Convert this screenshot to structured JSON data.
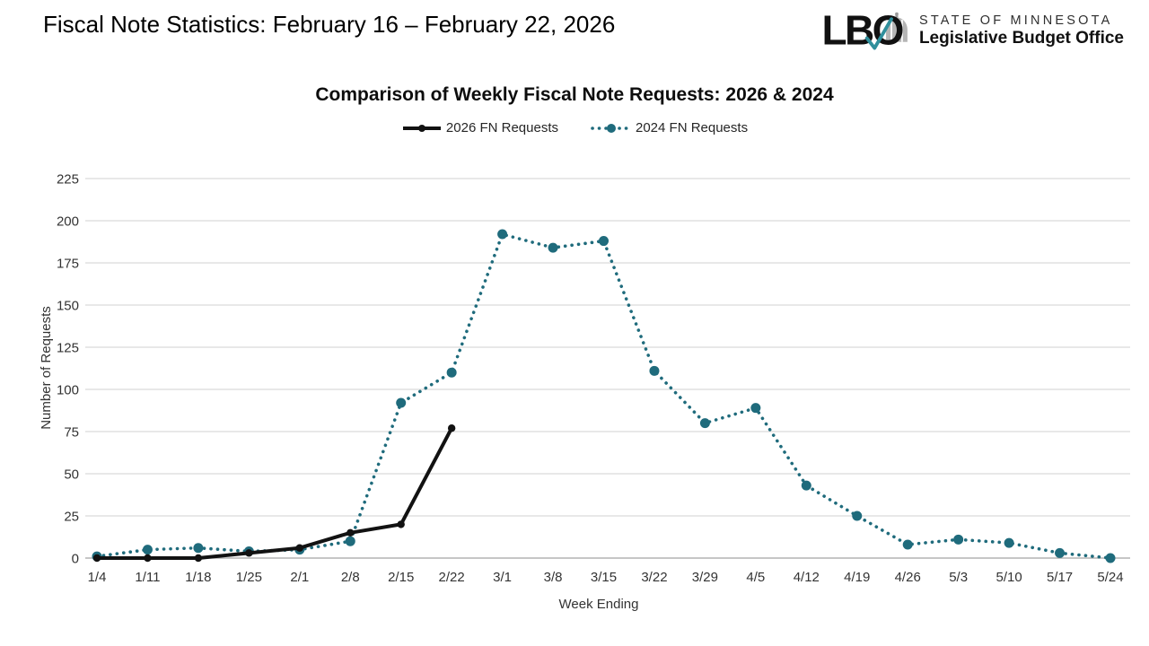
{
  "header": {
    "title": "Fiscal Note Statistics: February 16 – February 22, 2026",
    "logo": {
      "acronym": "LBO",
      "state_line": "STATE OF MINNESOTA",
      "office_line": "Legislative Budget Office",
      "check_color": "#2f8f9c",
      "dome_color": "#b5b5b5",
      "text_color": "#111111"
    }
  },
  "chart_data": {
    "type": "line",
    "title": "Comparison of Weekly Fiscal Note Requests: 2026 & 2024",
    "xlabel": "Week Ending",
    "ylabel": "Number of Requests",
    "ylim": [
      0,
      225
    ],
    "yticks": [
      0,
      25,
      50,
      75,
      100,
      125,
      150,
      175,
      200,
      225
    ],
    "grid": "horizontal",
    "gridline_color": "#d9d9d9",
    "axis_line_color": "#a3a3a3",
    "background": "#ffffff",
    "legend_position": "top-center",
    "categories": [
      "1/4",
      "1/11",
      "1/18",
      "1/25",
      "2/1",
      "2/8",
      "2/15",
      "2/22",
      "3/1",
      "3/8",
      "3/15",
      "3/22",
      "3/29",
      "4/5",
      "4/12",
      "4/19",
      "4/26",
      "5/3",
      "5/10",
      "5/17",
      "5/24"
    ],
    "series": [
      {
        "name": "2026 FN Requests",
        "color": "#121212",
        "line_style": "solid",
        "marker": "circle",
        "values": [
          0,
          0,
          0,
          3,
          6,
          15,
          20,
          77
        ]
      },
      {
        "name": "2024 FN Requests",
        "color": "#1f6b7c",
        "line_style": "dotted",
        "marker": "circle",
        "values": [
          1,
          5,
          6,
          4,
          5,
          10,
          92,
          110,
          192,
          184,
          188,
          111,
          80,
          89,
          43,
          25,
          8,
          11,
          9,
          3,
          0
        ]
      }
    ]
  }
}
